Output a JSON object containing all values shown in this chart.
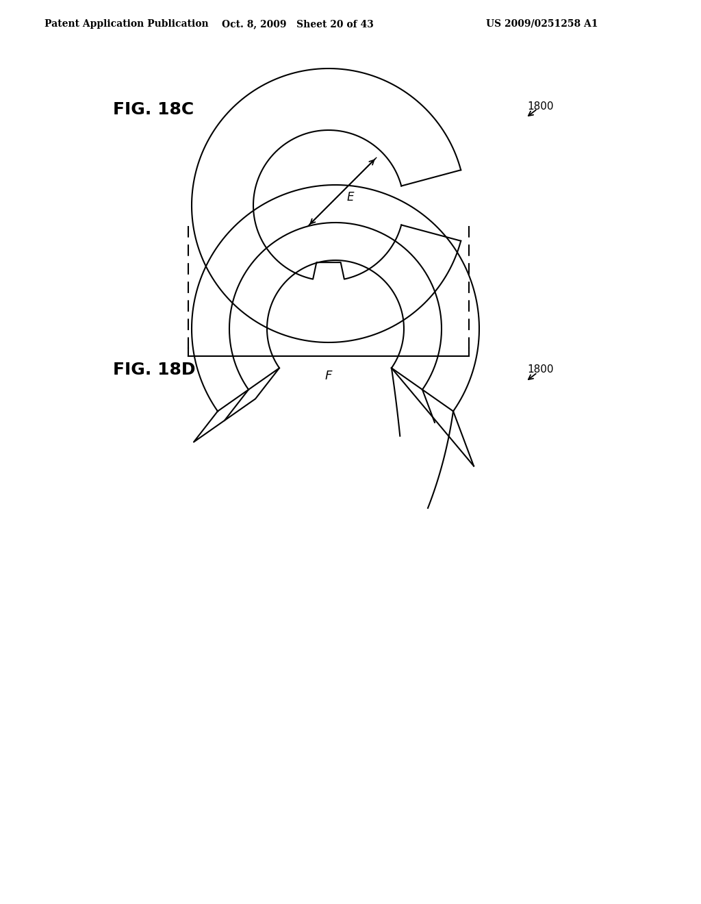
{
  "bg_color": "#ffffff",
  "header_left": "Patent Application Publication",
  "header_mid": "Oct. 8, 2009   Sheet 20 of 43",
  "header_right": "US 2009/0251258 A1",
  "fig18c_label": "FIG. 18C",
  "fig18d_label": "FIG. 18D",
  "ref_num": "1800",
  "dim_e": "E",
  "dim_f": "F",
  "line_color": "#000000",
  "line_width": 1.5
}
